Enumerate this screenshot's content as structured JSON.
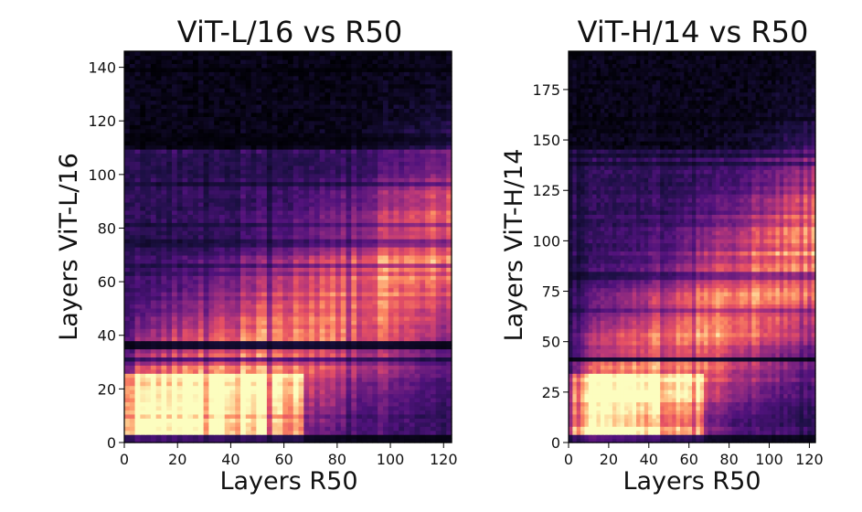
{
  "chart_data": [
    {
      "type": "heatmap",
      "title": "ViT-L/16 vs R50",
      "xlabel": "Layers R50",
      "ylabel": "Layers ViT-L/16",
      "x_range": [
        0,
        123
      ],
      "y_range": [
        0,
        146
      ],
      "xticks": [
        0,
        20,
        40,
        60,
        80,
        100,
        120
      ],
      "yticks": [
        0,
        20,
        40,
        60,
        80,
        100,
        120,
        140
      ],
      "colormap": "magma",
      "value_range": [
        0.1,
        0.85
      ],
      "grid": false
    },
    {
      "type": "heatmap",
      "title": "ViT-H/14 vs R50",
      "xlabel": "Layers R50",
      "ylabel": "Layers ViT-H/14",
      "x_range": [
        0,
        123
      ],
      "y_range": [
        0,
        194
      ],
      "xticks": [
        0,
        20,
        40,
        60,
        80,
        100,
        120
      ],
      "yticks": [
        0,
        25,
        50,
        75,
        100,
        125,
        150,
        175
      ],
      "colormap": "magma",
      "value_range": [
        0.1,
        0.85
      ],
      "grid": false
    }
  ]
}
